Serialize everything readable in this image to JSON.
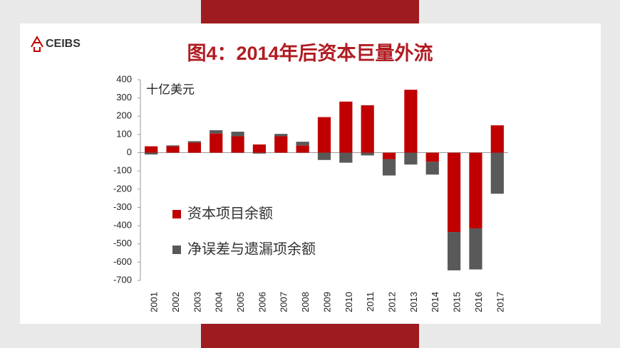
{
  "logo": "CEIBS",
  "chart_data": {
    "type": "bar",
    "stacked": true,
    "title": "图4：2014年后资本巨量外流",
    "y_label": "十亿美元",
    "categories": [
      "2001",
      "2002",
      "2003",
      "2004",
      "2005",
      "2006",
      "2007",
      "2008",
      "2009",
      "2010",
      "2011",
      "2012",
      "2013",
      "2014",
      "2015",
      "2016",
      "2017"
    ],
    "series": [
      {
        "name": "资本项目余额",
        "color": "#c00000",
        "values": [
          35,
          35,
          55,
          105,
          90,
          45,
          90,
          40,
          195,
          280,
          260,
          -35,
          345,
          -50,
          -435,
          -415,
          150
        ]
      },
      {
        "name": "净误差与遗漏项余额",
        "color": "#595959",
        "values": [
          -10,
          5,
          8,
          18,
          25,
          -5,
          13,
          20,
          -40,
          -55,
          -15,
          -90,
          -65,
          -70,
          -210,
          -225,
          -225
        ]
      }
    ],
    "ylim": [
      -700,
      400
    ],
    "yticks": [
      -700,
      -600,
      -500,
      -400,
      -300,
      -200,
      -100,
      0,
      100,
      200,
      300,
      400
    ],
    "grid": false,
    "legend": "left"
  }
}
